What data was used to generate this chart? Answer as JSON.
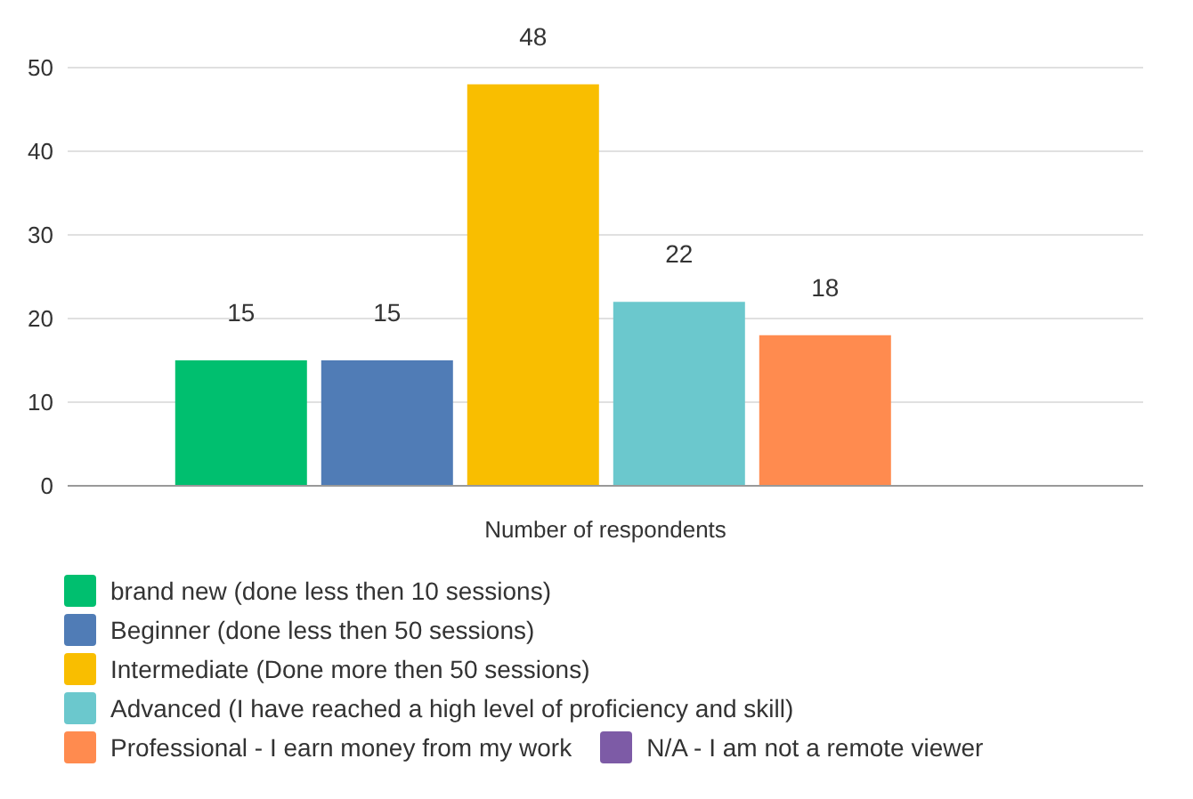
{
  "chart_data": {
    "type": "bar",
    "categories": [
      "Number of respondents"
    ],
    "series": [
      {
        "name": "brand new (done less then 10 sessions)",
        "color": "#00bf6f",
        "values": [
          15
        ],
        "value_labels": [
          "15"
        ]
      },
      {
        "name": "Beginner (done less then 50 sessions)",
        "color": "#507cb6",
        "values": [
          15
        ],
        "value_labels": [
          "15"
        ]
      },
      {
        "name": "Intermediate (Done more then 50 sessions)",
        "color": "#f9be00",
        "values": [
          48
        ],
        "value_labels": [
          "48"
        ]
      },
      {
        "name": "Advanced (I have reached a high level of proficiency and skill)",
        "color": "#6bc8cd",
        "values": [
          22
        ],
        "value_labels": [
          "22"
        ]
      },
      {
        "name": "Professional - I earn money from my work",
        "color": "#ff8b4f",
        "values": [
          18
        ],
        "value_labels": [
          "18"
        ]
      },
      {
        "name": "N/A - I am not a remote viewer",
        "color": "#7d5ba6",
        "values": [
          0
        ],
        "value_labels": [
          null
        ]
      }
    ],
    "ylim": [
      0,
      50
    ],
    "yticks": [
      0,
      10,
      20,
      30,
      40,
      50
    ],
    "grid": "y",
    "legend": "bottom"
  }
}
